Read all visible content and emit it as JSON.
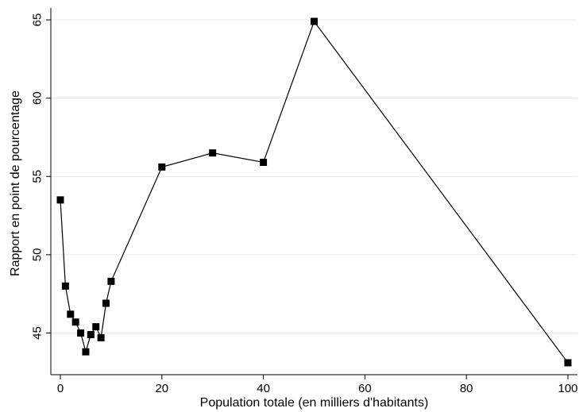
{
  "chart_data": {
    "type": "line",
    "title": "",
    "xlabel": "Population totale (en milliers d'habitants)",
    "ylabel": "Rapport en point de pourcentage",
    "xlim": [
      0,
      100
    ],
    "ylim": [
      43,
      65
    ],
    "xticks": [
      0,
      20,
      40,
      60,
      80,
      100
    ],
    "yticks": [
      45,
      50,
      55,
      60,
      65
    ],
    "grid": true,
    "legend": "none",
    "series": [
      {
        "marker": "square",
        "color": "#000000",
        "points": [
          {
            "x": 0,
            "y": 53.5
          },
          {
            "x": 1,
            "y": 48.0
          },
          {
            "x": 2,
            "y": 46.2
          },
          {
            "x": 3,
            "y": 45.7
          },
          {
            "x": 4,
            "y": 45.0
          },
          {
            "x": 5,
            "y": 43.8
          },
          {
            "x": 6,
            "y": 44.9
          },
          {
            "x": 7,
            "y": 45.4
          },
          {
            "x": 8,
            "y": 44.7
          },
          {
            "x": 9,
            "y": 46.9
          },
          {
            "x": 10,
            "y": 48.3
          },
          {
            "x": 20,
            "y": 55.6
          },
          {
            "x": 30,
            "y": 56.5
          },
          {
            "x": 40,
            "y": 55.9
          },
          {
            "x": 50,
            "y": 64.9
          },
          {
            "x": 100,
            "y": 43.1
          }
        ]
      }
    ]
  }
}
